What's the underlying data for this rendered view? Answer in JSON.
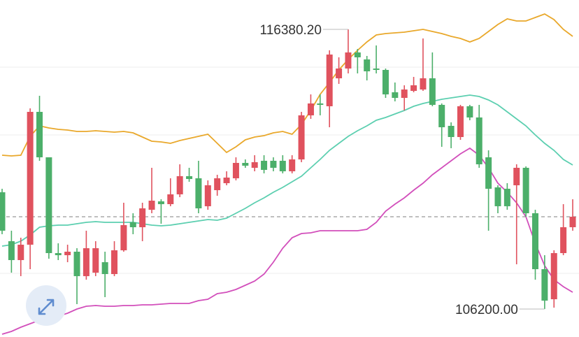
{
  "chart_data": {
    "type": "candlestick",
    "ylim": [
      105182,
      117449
    ],
    "up_color": "#e0525e",
    "down_color": "#4caf6a",
    "candles": {
      "open": [
        110451,
        108670,
        107982,
        108542,
        113377,
        111723,
        108236,
        108160,
        108287,
        107397,
        107524,
        107905,
        107473,
        108338,
        109356,
        109178,
        109814,
        110120,
        110018,
        110375,
        111036,
        110959,
        109942,
        110527,
        110781,
        110959,
        111519,
        111341,
        111596,
        111596,
        111596,
        111214,
        111646,
        113250,
        113683,
        113581,
        114599,
        114955,
        115540,
        115286,
        114955,
        114904,
        114090,
        113886,
        114141,
        114191,
        114599,
        113632,
        112868,
        112461,
        113581,
        113173,
        111723,
        110628,
        110578,
        110705,
        111341,
        109687,
        107651,
        106556,
        108236,
        109178
      ],
      "close": [
        109051,
        107982,
        108542,
        113377,
        111723,
        108236,
        108160,
        108287,
        107397,
        108414,
        108414,
        107473,
        108338,
        109254,
        109178,
        109865,
        110145,
        110018,
        110375,
        111036,
        110934,
        109865,
        110705,
        110959,
        110985,
        111519,
        111417,
        111545,
        111265,
        111341,
        111214,
        111646,
        113250,
        113683,
        113632,
        115464,
        114955,
        115540,
        115362,
        114853,
        114904,
        114013,
        113886,
        114191,
        114344,
        114599,
        113632,
        112817,
        112461,
        113581,
        113173,
        111468,
        110578,
        109942,
        109942,
        111341,
        109687,
        107651,
        106506,
        108236,
        109178,
        109560
      ],
      "high": [
        110578,
        109051,
        108796,
        113505,
        113962,
        111723,
        108593,
        108542,
        108414,
        109051,
        108670,
        108287,
        108670,
        110069,
        109687,
        110069,
        111341,
        110196,
        110959,
        111468,
        111341,
        111596,
        110883,
        111087,
        111214,
        111723,
        111646,
        111799,
        111799,
        111723,
        111799,
        111799,
        113377,
        114013,
        114013,
        115617,
        115362,
        116380.2,
        115667,
        115413,
        115795,
        114955,
        114446,
        114344,
        114650,
        116049,
        115540,
        113683,
        112995,
        113632,
        113632,
        113632,
        111977,
        110705,
        110781,
        111468,
        111392,
        109814,
        108160,
        108338,
        110018,
        110196
      ],
      "low": [
        108923,
        107524,
        107397,
        107651,
        111596,
        108032,
        107982,
        107905,
        106378,
        107269,
        107397,
        106633,
        107397,
        108287,
        108923,
        108670,
        109687,
        109305,
        109942,
        110273,
        110832,
        109687,
        109814,
        110324,
        110705,
        110883,
        111341,
        111214,
        111138,
        111214,
        111138,
        111138,
        111545,
        113123,
        113250,
        112817,
        114395,
        114777,
        114777,
        114522,
        114777,
        113886,
        113759,
        113428,
        114090,
        114141,
        113581,
        112105,
        112054,
        112359,
        113072,
        111341,
        109051,
        109687,
        109814,
        107829,
        109560,
        107269,
        106200,
        106251,
        108160,
        109051
      ]
    },
    "bands": [
      {
        "color": "#e9a82b",
        "values": [
          111799,
          111774,
          111799,
          112486,
          112868,
          112792,
          112741,
          112715,
          112664,
          112664,
          112690,
          112664,
          112639,
          112664,
          112614,
          112461,
          112308,
          112283,
          112232,
          112334,
          112410,
          112486,
          112563,
          112232,
          111901,
          112105,
          112359,
          112461,
          112512,
          112614,
          112664,
          112563,
          112919,
          113428,
          114013,
          114446,
          114904,
          115286,
          115617,
          115922,
          116177,
          116227,
          116253,
          116278,
          116329,
          116380,
          116304,
          116227,
          116126,
          116049,
          115922,
          116049,
          116304,
          116558,
          116762,
          116686,
          116686,
          116813,
          116940,
          116736,
          116380,
          116126
        ]
      },
      {
        "color": "#5ccfb0",
        "values": [
          108491,
          108542,
          108670,
          108898,
          109178,
          109229,
          109254,
          109254,
          109305,
          109356,
          109381,
          109356,
          109356,
          109356,
          109356,
          109305,
          109254,
          109229,
          109254,
          109305,
          109356,
          109407,
          109458,
          109432,
          109509,
          109687,
          109865,
          110069,
          110247,
          110451,
          110628,
          110832,
          111036,
          111341,
          111646,
          111977,
          112232,
          112486,
          112690,
          112868,
          113072,
          113173,
          113301,
          113428,
          113581,
          113683,
          113759,
          113835,
          113886,
          113937,
          113988,
          113937,
          113810,
          113632,
          113377,
          113123,
          112868,
          112537,
          112232,
          111977,
          111646,
          111443
        ]
      },
      {
        "color": "#d24fbb",
        "values": [
          105284,
          105386,
          105538,
          105666,
          105793,
          105869,
          105946,
          106047,
          106200,
          106302,
          106327,
          106302,
          106302,
          106327,
          106327,
          106353,
          106353,
          106378,
          106404,
          106404,
          106404,
          106506,
          106556,
          106760,
          106811,
          106913,
          107065,
          107218,
          107473,
          107905,
          108414,
          108796,
          108949,
          108974,
          109051,
          109051,
          109051,
          109051,
          109051,
          109101,
          109356,
          109763,
          110018,
          110247,
          110527,
          110781,
          111087,
          111341,
          111596,
          111850,
          112054,
          111799,
          111341,
          110781,
          110451,
          110069,
          109560,
          108593,
          107778,
          107269,
          107015,
          106811
        ]
      }
    ],
    "annotations": [
      {
        "value": 116380.2,
        "label": "116380.20"
      },
      {
        "value": 106200,
        "label": "106200.00"
      }
    ]
  }
}
